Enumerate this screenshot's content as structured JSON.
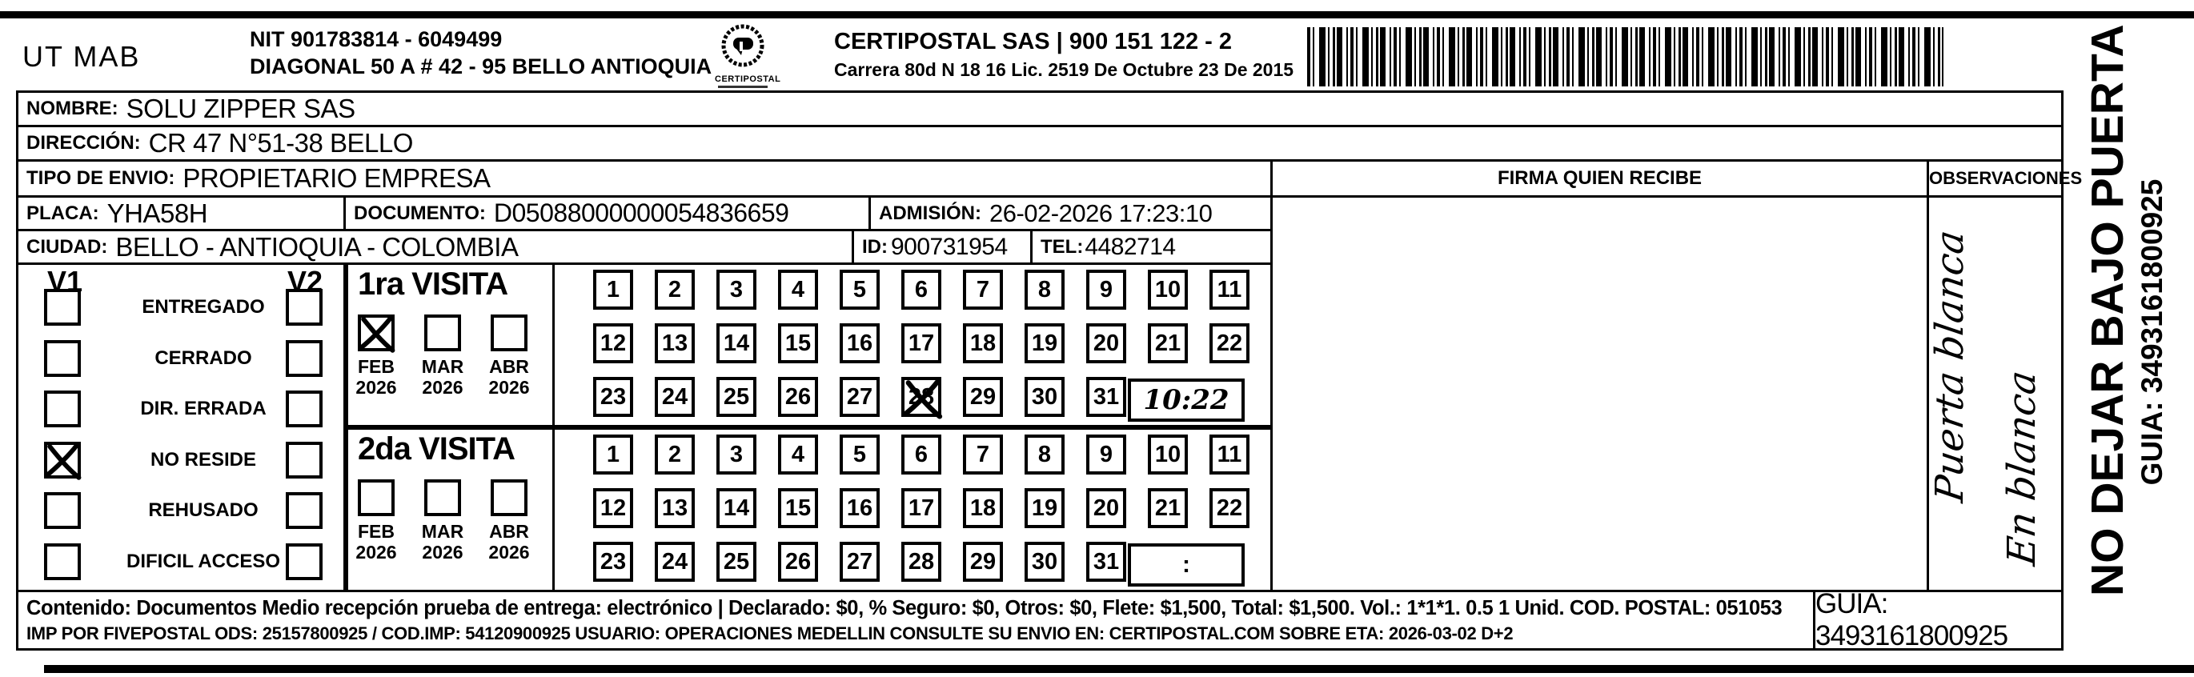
{
  "header": {
    "org": "UT MAB",
    "nit": "NIT 901783814 - 6049499",
    "address": "DIAGONAL 50 A # 42 - 95  BELLO  ANTIOQUIA",
    "logo_name": "CERTIPOSTAL",
    "company": "CERTIPOSTAL SAS | 900 151 122 - 2",
    "license": "Carrera 80d N 18 16  Lic. 2519 De Octubre 23 De 2015"
  },
  "fields": {
    "nombre": {
      "label": "NOMBRE:",
      "value": "SOLU ZIPPER SAS"
    },
    "direccion": {
      "label": "DIRECCIÓN:",
      "value": "CR 47 N°51-38 BELLO"
    },
    "tipo": {
      "label": "TIPO DE ENVIO:",
      "value": "PROPIETARIO EMPRESA"
    },
    "placa": {
      "label": "PLACA:",
      "value": "YHA58H"
    },
    "documento": {
      "label": "DOCUMENTO:",
      "value": "D05088000000054836659"
    },
    "admision": {
      "label": "ADMISIÓN:",
      "value": "26-02-2026 17:23:10"
    },
    "ciudad": {
      "label": "CIUDAD:",
      "value": "BELLO - ANTIOQUIA - COLOMBIA"
    },
    "id": {
      "label": "ID:",
      "value": "900731954"
    },
    "tel": {
      "label": "TEL:",
      "value": "4482714"
    }
  },
  "firma_header": "FIRMA QUIEN RECIBE",
  "observaciones_header": "OBSERVACIONES",
  "observaciones_handwriting": [
    "Puerta blanca",
    "En blanca"
  ],
  "status": {
    "col1": "V1",
    "col2": "V2",
    "options": [
      {
        "label": "ENTREGADO",
        "v1": false,
        "v2": false
      },
      {
        "label": "CERRADO",
        "v1": false,
        "v2": false
      },
      {
        "label": "DIR. ERRADA",
        "v1": false,
        "v2": false
      },
      {
        "label": "NO RESIDE",
        "v1": true,
        "v2": false
      },
      {
        "label": "REHUSADO",
        "v1": false,
        "v2": false
      },
      {
        "label": "DIFICIL ACCESO",
        "v1": false,
        "v2": false
      }
    ]
  },
  "visits": [
    {
      "title": "1ra VISITA",
      "months": [
        {
          "month": "FEB",
          "year": "2026",
          "checked": true
        },
        {
          "month": "MAR",
          "year": "2026",
          "checked": false
        },
        {
          "month": "ABR",
          "year": "2026",
          "checked": false
        }
      ],
      "day_rows": [
        [
          1,
          2,
          3,
          4,
          5,
          6,
          7,
          8,
          9,
          10,
          11
        ],
        [
          12,
          13,
          14,
          15,
          16,
          17,
          18,
          19,
          20,
          21,
          22
        ],
        [
          23,
          24,
          25,
          26,
          27,
          28,
          29,
          30,
          31
        ]
      ],
      "crossed_day": 28,
      "time_box": "10:22",
      "time_handwritten": true
    },
    {
      "title": "2da VISITA",
      "months": [
        {
          "month": "FEB",
          "year": "2026",
          "checked": false
        },
        {
          "month": "MAR",
          "year": "2026",
          "checked": false
        },
        {
          "month": "ABR",
          "year": "2026",
          "checked": false
        }
      ],
      "day_rows": [
        [
          1,
          2,
          3,
          4,
          5,
          6,
          7,
          8,
          9,
          10,
          11
        ],
        [
          12,
          13,
          14,
          15,
          16,
          17,
          18,
          19,
          20,
          21,
          22
        ],
        [
          23,
          24,
          25,
          26,
          27,
          28,
          29,
          30,
          31
        ]
      ],
      "crossed_day": null,
      "time_box": ":",
      "time_handwritten": false
    }
  ],
  "footer": {
    "line1": "Contenido: Documentos Medio recepción prueba de entrega: electrónico | Declarado: $0, % Seguro: $0, Otros: $0, Flete: $1,500, Total: $1,500. Vol.: 1*1*1. 0.5  1 Unid. COD. POSTAL: 051053",
    "line2": "IMP POR FIVEPOSTAL ODS: 25157800925 / COD.IMP: 54120900925 USUARIO: OPERACIONES MEDELLIN CONSULTE SU ENVIO EN: CERTIPOSTAL.COM SOBRE ETA: 2026-03-02 D+2",
    "guia": "GUIA: 3493161800925"
  },
  "side_text": {
    "line1": "NO DEJAR BAJO PUERTA",
    "line2": "GUIA: 3493161800925"
  }
}
